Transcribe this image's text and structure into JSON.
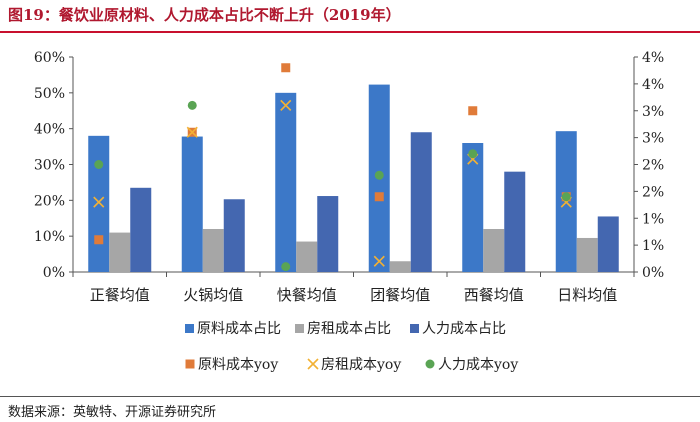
{
  "header": {
    "title": "图19：餐饮业原材料、人力成本占比不断上升（2019年）"
  },
  "footer": {
    "source": "数据来源：英敏特、开源证券研究所"
  },
  "colors": {
    "raw_bar": "#3c78c8",
    "rent_bar": "#a6a6a6",
    "labor_bar": "#4467b0",
    "raw_yoy": "#e07b39",
    "rent_yoy": "#f2b134",
    "labor_yoy": "#5aa454"
  },
  "chart_data": {
    "type": "bar",
    "title": "餐饮业原材料、人力成本占比不断上升（2019年）",
    "categories": [
      "正餐均值",
      "火锅均值",
      "快餐均值",
      "团餐均值",
      "西餐均值",
      "日料均值"
    ],
    "series": [
      {
        "name": "原料成本占比",
        "axis": "left",
        "kind": "bar",
        "values": [
          38,
          37.8,
          50,
          52.3,
          36,
          39.3
        ]
      },
      {
        "name": "房租成本占比",
        "axis": "left",
        "kind": "bar",
        "values": [
          11,
          12,
          8.5,
          3,
          12,
          9.5
        ]
      },
      {
        "name": "人力成本占比",
        "axis": "left",
        "kind": "bar",
        "values": [
          23.5,
          20.3,
          21.2,
          39,
          28,
          15.5
        ]
      },
      {
        "name": "原料成本yoy",
        "axis": "right",
        "kind": "marker",
        "marker": "square",
        "values": [
          0.6,
          2.6,
          3.8,
          1.4,
          3.0,
          1.4
        ]
      },
      {
        "name": "房租成本yoy",
        "axis": "right",
        "kind": "marker",
        "marker": "x",
        "values": [
          1.3,
          2.6,
          3.1,
          0.2,
          2.1,
          1.3
        ]
      },
      {
        "name": "人力成本yoy",
        "axis": "right",
        "kind": "marker",
        "marker": "circle",
        "values": [
          2.0,
          3.1,
          0.1,
          1.8,
          2.2,
          1.4
        ]
      }
    ],
    "ylim": [
      0,
      60
    ],
    "yticks": [
      "0%",
      "10%",
      "20%",
      "30%",
      "40%",
      "50%",
      "60%"
    ],
    "y2lim": [
      0,
      4
    ],
    "y2ticks": [
      "0%",
      "1%",
      "1%",
      "2%",
      "2%",
      "3%",
      "3%",
      "4%",
      "4%"
    ],
    "legend": {
      "row1": [
        "原料成本占比",
        "房租成本占比",
        "人力成本占比"
      ],
      "row2": [
        "原料成本yoy",
        "房租成本yoy",
        "人力成本yoy"
      ]
    }
  }
}
